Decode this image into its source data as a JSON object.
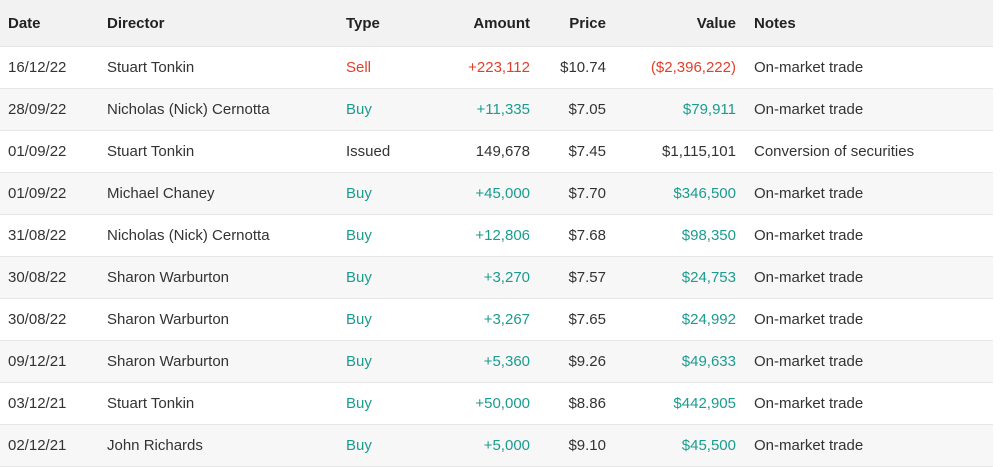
{
  "table": {
    "header": [
      "Date",
      "Director",
      "Type",
      "Amount",
      "Price",
      "Value",
      "Notes"
    ],
    "rows": [
      {
        "cells": [
          "16/12/22",
          "Stuart Tonkin",
          "Sell",
          "+223,112",
          "$10.74",
          "($2,396,222)",
          "On-market trade"
        ],
        "color": "#e0402a"
      },
      {
        "cells": [
          "28/09/22",
          "Nicholas (Nick) Cernotta",
          "Buy",
          "+11,335",
          "$7.05",
          "$79,911",
          "On-market trade"
        ],
        "color": "#1a9c8f"
      },
      {
        "cells": [
          "01/09/22",
          "Stuart Tonkin",
          "Issued",
          "149,678",
          "$7.45",
          "$1,115,101",
          "Conversion of securities"
        ],
        "color": "#333333"
      },
      {
        "cells": [
          "01/09/22",
          "Michael Chaney",
          "Buy",
          "+45,000",
          "$7.70",
          "$346,500",
          "On-market trade"
        ],
        "color": "#1a9c8f"
      },
      {
        "cells": [
          "31/08/22",
          "Nicholas (Nick) Cernotta",
          "Buy",
          "+12,806",
          "$7.68",
          "$98,350",
          "On-market trade"
        ],
        "color": "#1a9c8f"
      },
      {
        "cells": [
          "30/08/22",
          "Sharon Warburton",
          "Buy",
          "+3,270",
          "$7.57",
          "$24,753",
          "On-market trade"
        ],
        "color": "#1a9c8f"
      },
      {
        "cells": [
          "30/08/22",
          "Sharon Warburton",
          "Buy",
          "+3,267",
          "$7.65",
          "$24,992",
          "On-market trade"
        ],
        "color": "#1a9c8f"
      },
      {
        "cells": [
          "09/12/21",
          "Sharon Warburton",
          "Buy",
          "+5,360",
          "$9.26",
          "$49,633",
          "On-market trade"
        ],
        "color": "#1a9c8f"
      },
      {
        "cells": [
          "03/12/21",
          "Stuart Tonkin",
          "Buy",
          "+50,000",
          "$8.86",
          "$442,905",
          "On-market trade"
        ],
        "color": "#1a9c8f"
      },
      {
        "cells": [
          "02/12/21",
          "John Richards",
          "Buy",
          "+5,000",
          "$9.10",
          "$45,500",
          "On-market trade"
        ],
        "color": "#1a9c8f"
      }
    ]
  }
}
